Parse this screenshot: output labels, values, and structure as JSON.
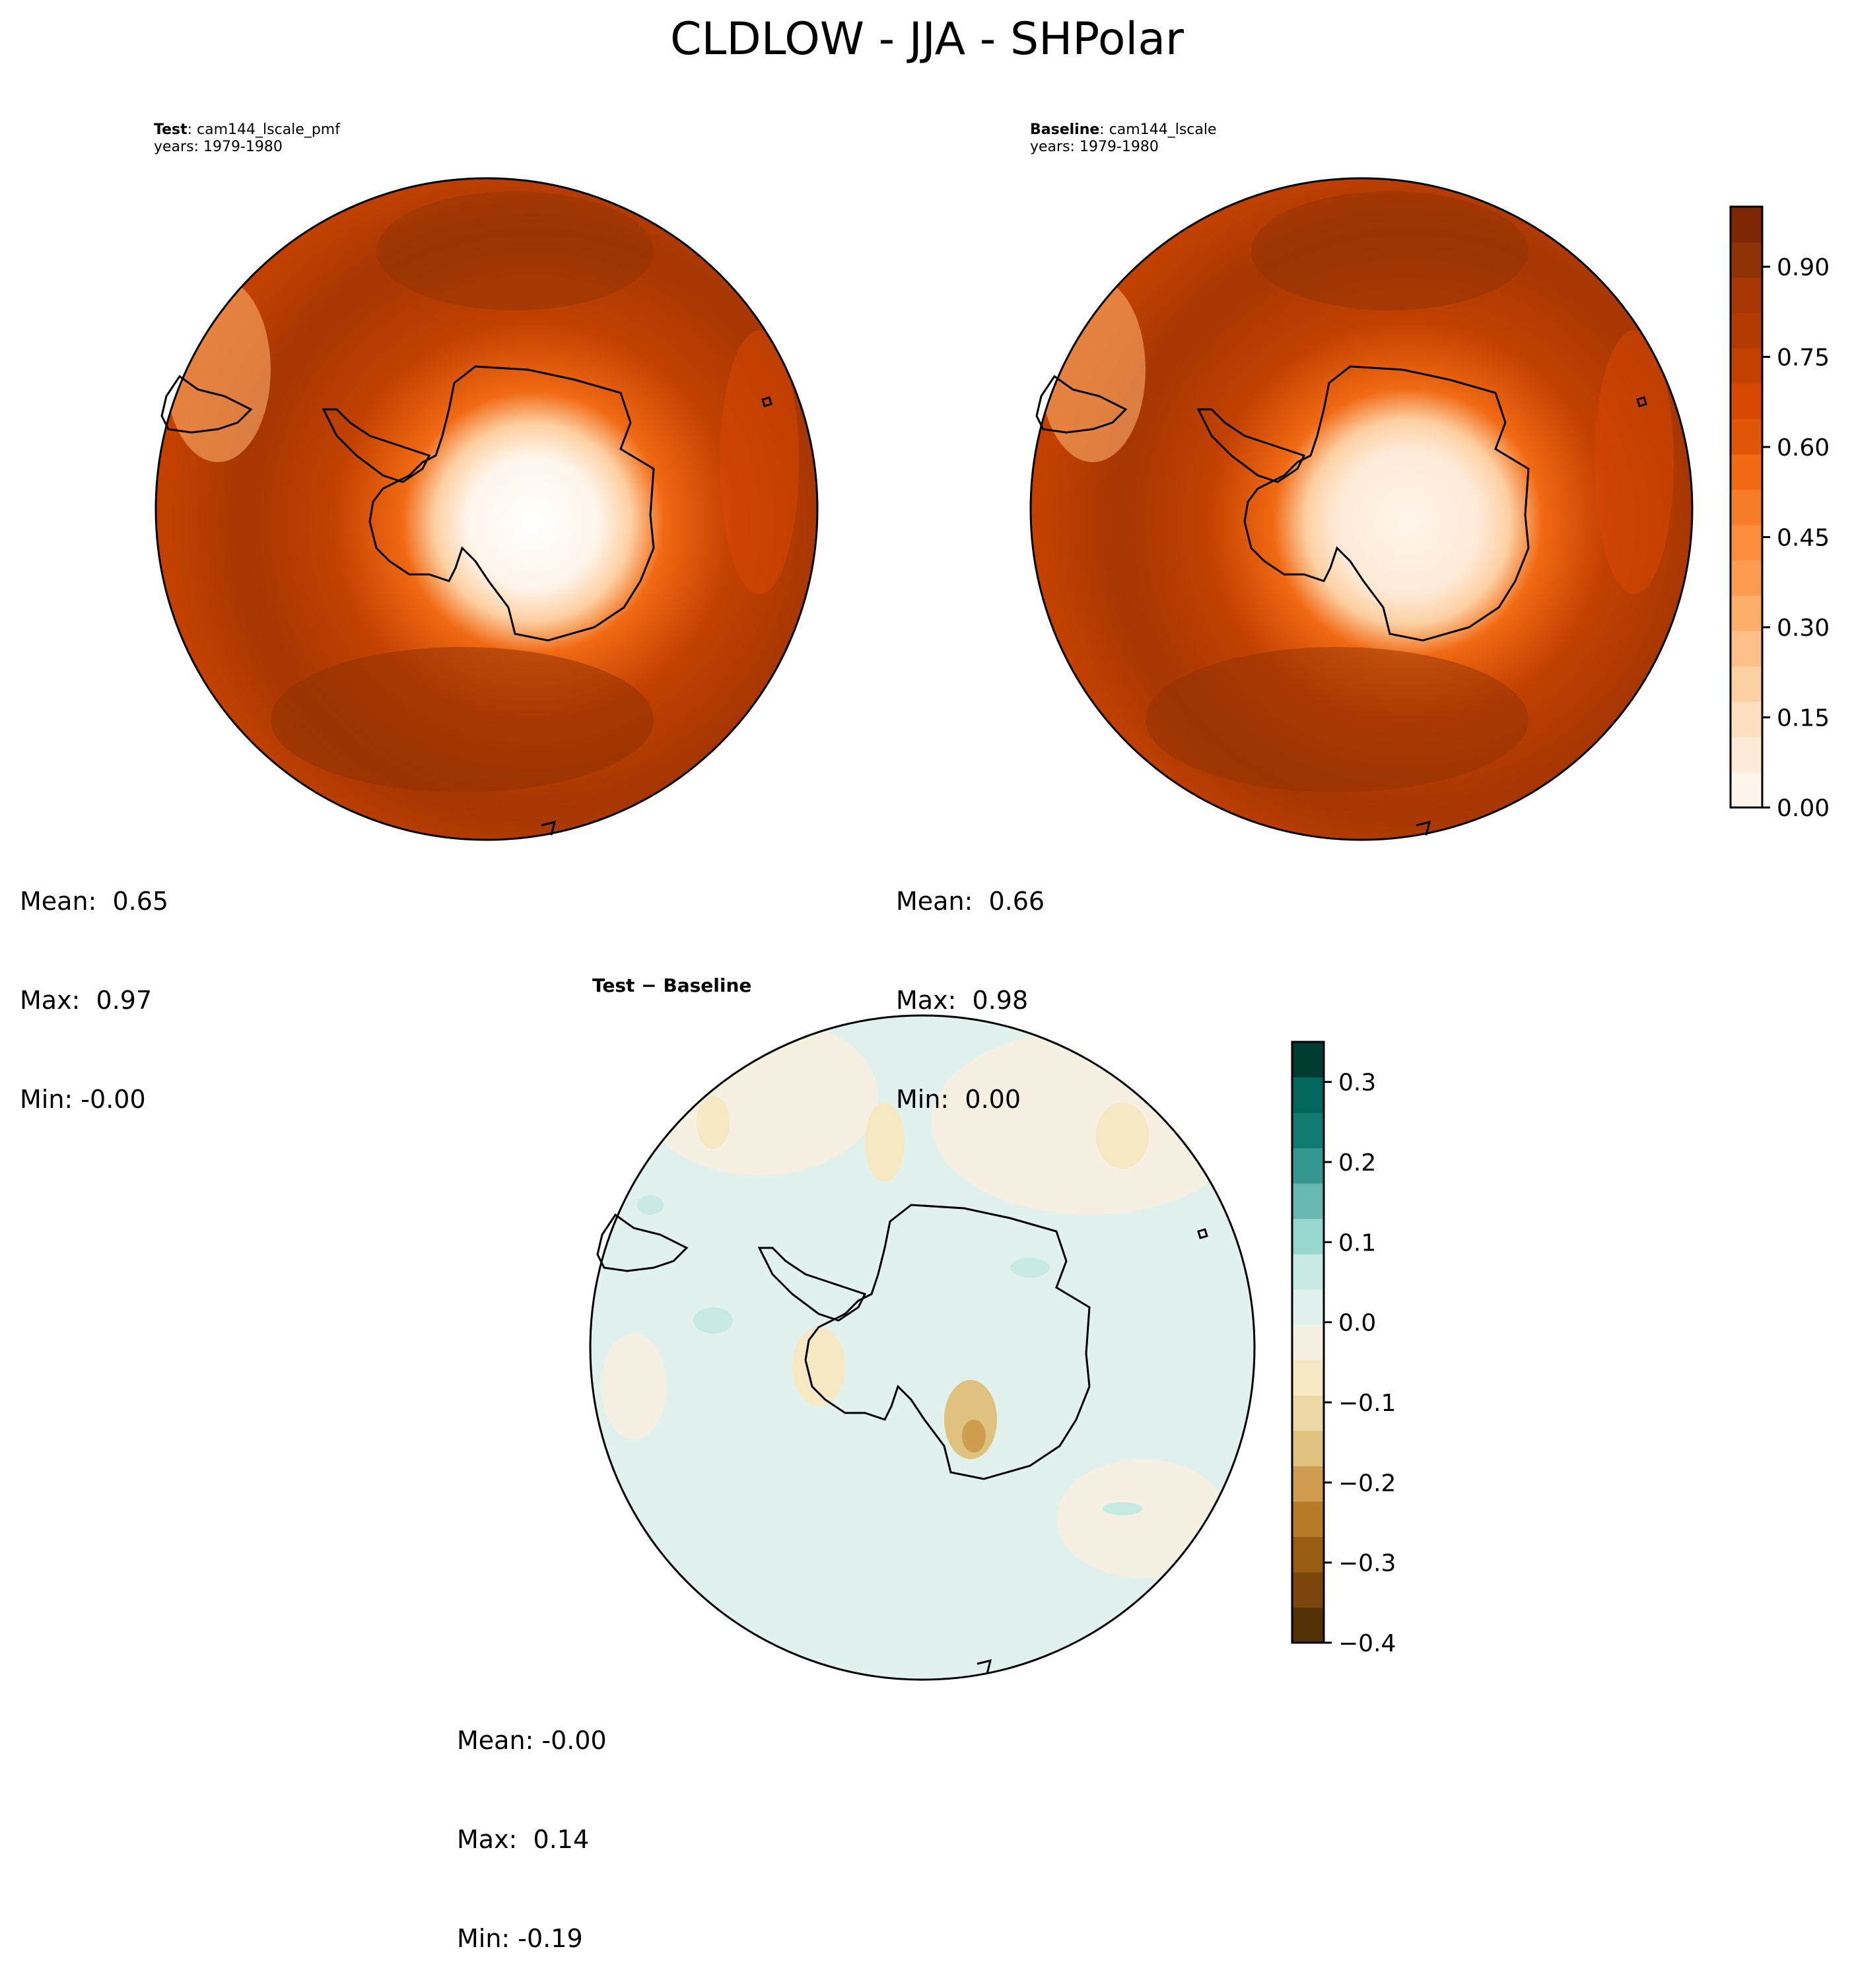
{
  "figure": {
    "title": "CLDLOW - JJA - SHPolar"
  },
  "panels": {
    "test": {
      "label_bold": "Test",
      "label_text": ": cam144_lscale_pmf",
      "years": "years: 1979-1980",
      "stats": {
        "mean": "Mean:  0.65",
        "max": "Max:  0.97",
        "min": "Min: -0.00"
      }
    },
    "baseline": {
      "label_bold": "Baseline",
      "label_text": ": cam144_lscale",
      "years": "years: 1979-1980",
      "stats": {
        "mean": "Mean:  0.66",
        "max": "Max:  0.98",
        "min": "Min:  0.00"
      }
    },
    "diff": {
      "label_bold": "Test − Baseline",
      "stats": {
        "mean": "Mean: -0.00",
        "max": "Max:  0.14",
        "min": "Min: -0.19"
      }
    }
  },
  "colorbars": {
    "field": {
      "ticks": [
        "0.00",
        "0.15",
        "0.30",
        "0.45",
        "0.60",
        "0.75",
        "0.90"
      ],
      "tick_values": [
        0.0,
        0.15,
        0.3,
        0.45,
        0.6,
        0.75,
        0.9
      ],
      "range": [
        0.0,
        1.0
      ],
      "colors": [
        "#fff5eb",
        "#feead6",
        "#fee0c1",
        "#fdd0a2",
        "#fdbf86",
        "#fdae6b",
        "#fd9c51",
        "#fd8d3c",
        "#f87d2a",
        "#f16913",
        "#e25609",
        "#d94801",
        "#c24101",
        "#b33b02",
        "#a63603",
        "#8f3204",
        "#7f2704"
      ]
    },
    "diff": {
      "ticks": [
        "0.3",
        "0.2",
        "0.1",
        "0.0",
        "−0.1",
        "−0.2",
        "−0.3",
        "−0.4"
      ],
      "tick_values": [
        0.3,
        0.2,
        0.1,
        0.0,
        -0.1,
        -0.2,
        -0.3,
        -0.4
      ],
      "range": [
        -0.4,
        0.35
      ],
      "colors": [
        "#543005",
        "#7a4609",
        "#995d12",
        "#b77a27",
        "#cf9d50",
        "#dfc27d",
        "#ecd9a6",
        "#f6e8c3",
        "#f5f0e2",
        "#e0f1ee",
        "#c7eae5",
        "#98d7cc",
        "#67b8ae",
        "#35978f",
        "#117a70",
        "#01665e",
        "#003c30"
      ]
    }
  }
}
